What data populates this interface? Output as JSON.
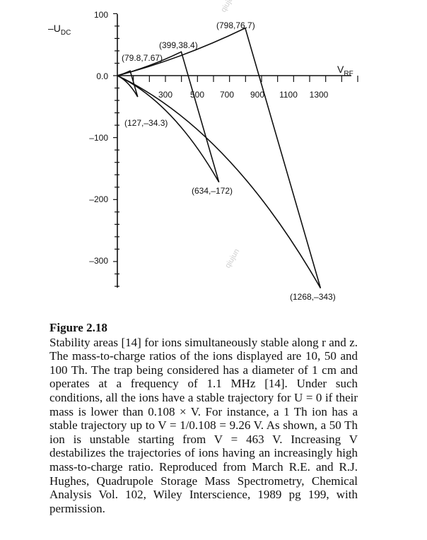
{
  "chart_data": {
    "type": "line",
    "xlabel": {
      "main": "V",
      "sub": "RF"
    },
    "ylabel": {
      "prefix": "–U",
      "sub": "DC"
    },
    "xlim": [
      0,
      1500
    ],
    "ylim": [
      -343,
      100
    ],
    "x_ticks": [
      "300",
      "500",
      "700",
      "900",
      "1100",
      "1300"
    ],
    "y_ticks": [
      "100",
      "0.0",
      "–100",
      "–200",
      "–300"
    ],
    "series": [
      {
        "points": [
          [
            0,
            0
          ],
          [
            79.8,
            7.67
          ],
          [
            127,
            -34.3
          ],
          [
            0,
            0
          ]
        ],
        "annotations": [
          "(79.8,7.67)",
          "(127,–34.3)"
        ]
      },
      {
        "points": [
          [
            0,
            0
          ],
          [
            399,
            38.4
          ],
          [
            634,
            -172
          ],
          [
            0,
            0
          ]
        ],
        "annotations": [
          "(399,38.4)",
          "(634,–172)"
        ]
      },
      {
        "points": [
          [
            0,
            0
          ],
          [
            798,
            76.7
          ],
          [
            1268,
            -343
          ],
          [
            0,
            0
          ]
        ],
        "annotations": [
          "(798,76.7)",
          "(1268,–343)"
        ]
      }
    ],
    "watermarks": [
      "qiujun",
      "qiujun"
    ]
  },
  "caption": {
    "label": "Figure 2.18",
    "text": "Stability areas [14] for ions simultaneously stable along r and z. The mass-to-charge ratios of the ions displayed are 10, 50 and 100 Th. The trap being considered has a diameter of 1 cm and operates at a frequency of 1.1 MHz [14]. Under such conditions, all the ions have a stable trajectory for U = 0 if their mass is lower than 0.108 × V. For instance, a 1 Th ion has a stable trajectory up to V = 1/0.108 = 9.26 V. As shown, a 50 Th ion is unstable starting from V = 463 V. Increasing V destabilizes the trajectories of ions having an increasingly high mass-to-charge ratio. Reproduced from March R.E. and R.J. Hughes, Quadrupole Storage Mass Spectrometry, Chemical Analysis Vol. 102, Wiley Interscience, 1989 pg 199, with permission."
  }
}
